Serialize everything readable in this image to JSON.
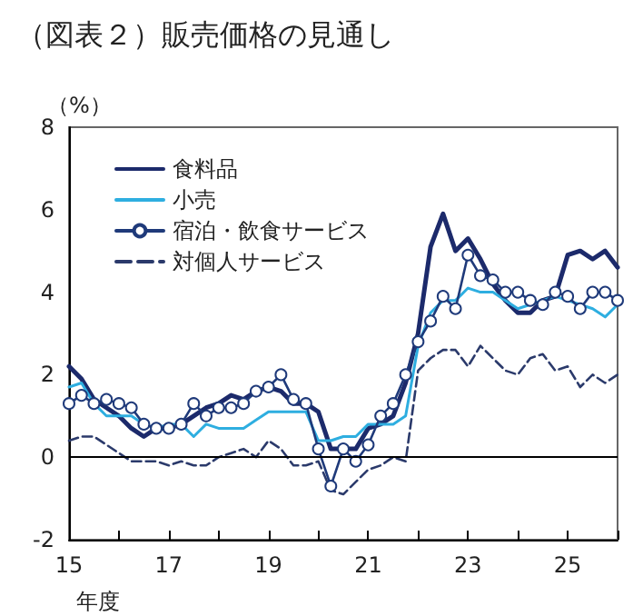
{
  "chart_data": {
    "type": "line",
    "title": "（図表２）販売価格の見通し",
    "xlabel": "年度",
    "ylabel": "（%）",
    "x": [
      15,
      15.25,
      15.5,
      15.75,
      16,
      16.25,
      16.5,
      16.75,
      17,
      17.25,
      17.5,
      17.75,
      18,
      18.25,
      18.5,
      18.75,
      19,
      19.25,
      19.5,
      19.75,
      20,
      20.25,
      20.5,
      20.75,
      21,
      21.25,
      21.5,
      21.75,
      22,
      22.25,
      22.5,
      22.75,
      23,
      23.25,
      23.5,
      23.75,
      24,
      24.25,
      24.5,
      24.75,
      25,
      25.25,
      25.5,
      25.75,
      26
    ],
    "series": [
      {
        "name": "食料品",
        "color": "#1c2a6b",
        "marker": "none",
        "line_style": "solid",
        "values": [
          2.2,
          1.9,
          1.4,
          1.2,
          1.0,
          0.7,
          0.5,
          0.7,
          0.7,
          0.8,
          1.0,
          1.2,
          1.3,
          1.5,
          1.4,
          1.6,
          1.7,
          1.6,
          1.3,
          1.3,
          1.1,
          0.2,
          0.2,
          0.2,
          0.7,
          0.8,
          1.0,
          1.8,
          3.0,
          5.1,
          5.9,
          5.0,
          5.3,
          4.8,
          4.2,
          3.8,
          3.5,
          3.5,
          3.8,
          3.9,
          4.9,
          5.0,
          4.8,
          5.0,
          4.6
        ]
      },
      {
        "name": "小売",
        "color": "#2eaee0",
        "marker": "none",
        "line_style": "solid",
        "values": [
          1.7,
          1.8,
          1.3,
          1.0,
          1.0,
          1.0,
          0.8,
          0.7,
          0.8,
          0.8,
          0.5,
          0.8,
          0.7,
          0.7,
          0.7,
          0.9,
          1.1,
          1.1,
          1.1,
          1.1,
          0.4,
          0.4,
          0.5,
          0.5,
          0.8,
          0.8,
          0.8,
          1.0,
          2.7,
          3.5,
          3.8,
          3.8,
          4.1,
          4.0,
          4.0,
          3.8,
          3.6,
          3.7,
          3.8,
          3.9,
          3.8,
          3.7,
          3.6,
          3.4,
          3.7
        ]
      },
      {
        "name": "宿泊・飲食サービス",
        "color": "#1f3a7a",
        "marker": "circle",
        "line_style": "solid",
        "values": [
          1.3,
          1.5,
          1.3,
          1.4,
          1.3,
          1.2,
          0.8,
          0.7,
          0.7,
          0.8,
          1.3,
          1.0,
          1.2,
          1.2,
          1.3,
          1.6,
          1.7,
          2.0,
          1.4,
          1.3,
          0.2,
          -0.7,
          0.2,
          -0.1,
          0.3,
          1.0,
          1.3,
          2.0,
          2.8,
          3.3,
          3.9,
          3.6,
          4.9,
          4.4,
          4.3,
          4.0,
          4.0,
          3.8,
          3.7,
          4.0,
          3.9,
          3.6,
          4.0,
          4.0,
          3.8
        ]
      },
      {
        "name": "対個人サービス",
        "color": "#2b3a6b",
        "marker": "none",
        "line_style": "dashed",
        "values": [
          0.4,
          0.5,
          0.5,
          0.3,
          0.1,
          -0.1,
          -0.1,
          -0.1,
          -0.2,
          -0.1,
          -0.2,
          -0.2,
          0.0,
          0.1,
          0.2,
          0.0,
          0.4,
          0.2,
          -0.2,
          -0.2,
          -0.1,
          -0.8,
          -0.9,
          -0.6,
          -0.3,
          -0.2,
          0.0,
          -0.1,
          2.1,
          2.4,
          2.6,
          2.6,
          2.2,
          2.7,
          2.4,
          2.1,
          2.0,
          2.4,
          2.5,
          2.1,
          2.2,
          1.7,
          2.0,
          1.8,
          2.0
        ]
      }
    ],
    "xlim": [
      15,
      26
    ],
    "xticks": [
      15,
      {
        "value": 16,
        "label": null
      },
      17,
      {
        "value": 18,
        "label": null
      },
      19,
      {
        "value": 20,
        "label": null
      },
      21,
      {
        "value": 22,
        "label": null
      },
      23,
      {
        "value": 24,
        "label": null
      },
      25,
      {
        "value": 26,
        "label": null
      }
    ],
    "ylim": [
      -2,
      8
    ],
    "yticks": [
      -2,
      0,
      2,
      4,
      6,
      8
    ],
    "ref_lines": [
      {
        "axis": "y",
        "value": 0,
        "color": "#000000"
      }
    ],
    "grid": false,
    "legend": "top left"
  }
}
